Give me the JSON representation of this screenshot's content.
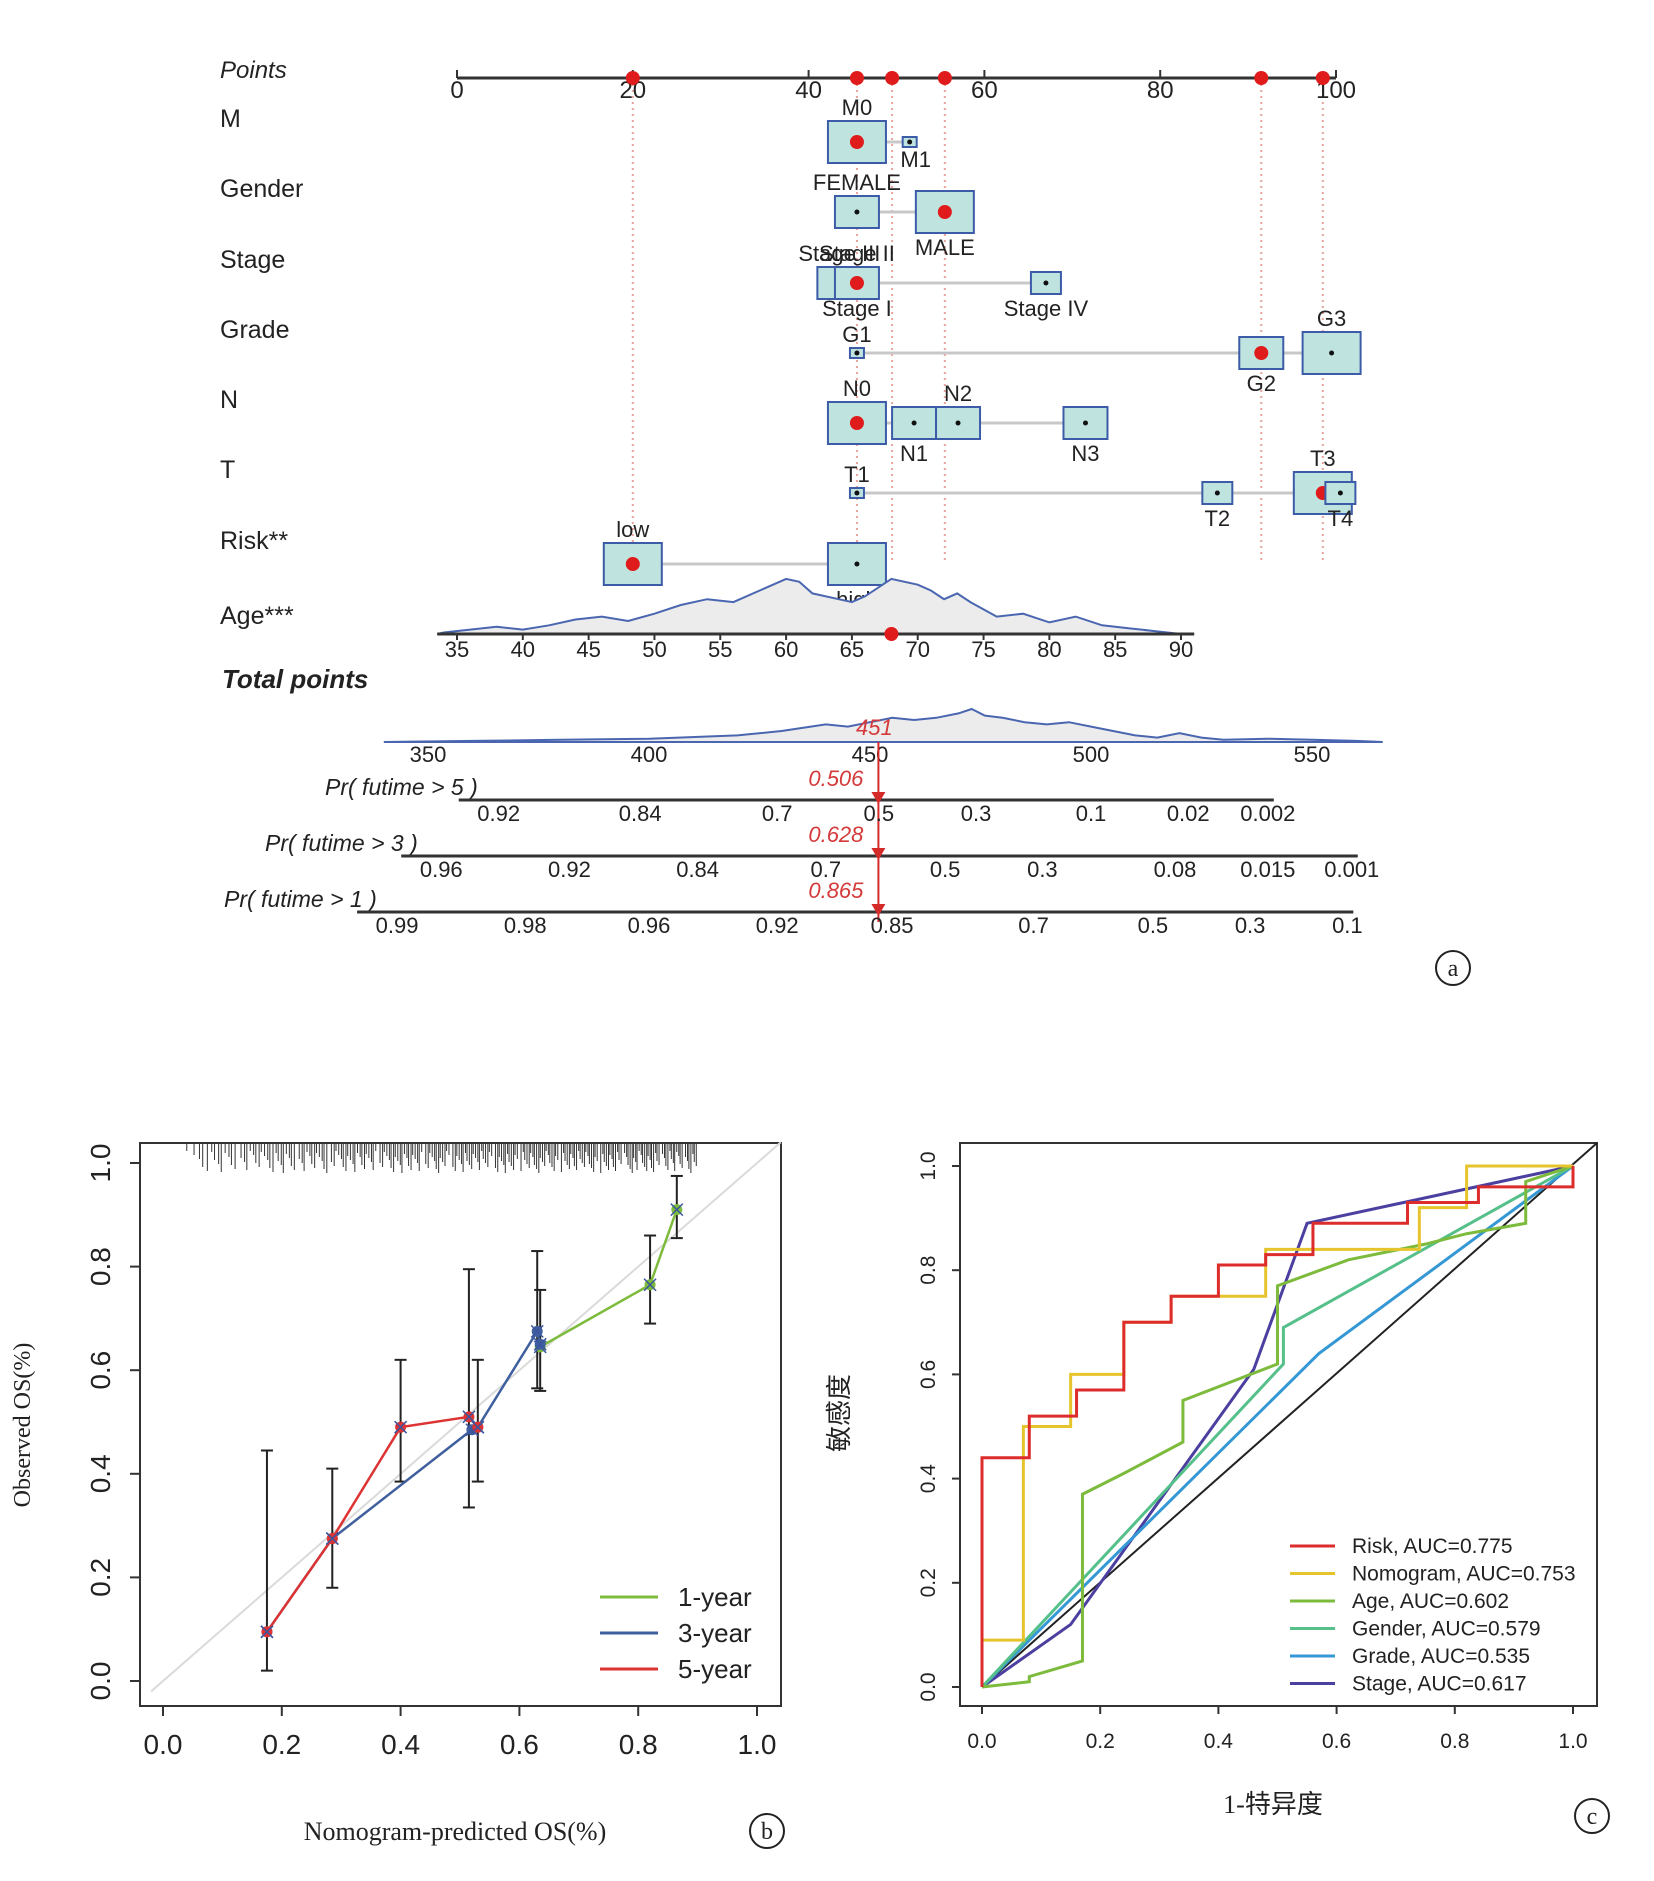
{
  "panel_labels": [
    "a",
    "b",
    "c"
  ],
  "chart_data": [
    {
      "type": "nomogram",
      "panel": "a",
      "points_axis": {
        "label": "Points",
        "ticks": [
          0,
          20,
          40,
          60,
          80,
          100
        ]
      },
      "selected_points": [
        20,
        45.5,
        49.5,
        55.5,
        91.5,
        98.5
      ],
      "variables": [
        {
          "name": "M",
          "levels": [
            {
              "label": "M0",
              "points": 45.5,
              "size": "large",
              "selected": true
            },
            {
              "label": "M1",
              "points": 51.5,
              "size": "tiny"
            }
          ]
        },
        {
          "name": "Gender",
          "levels": [
            {
              "label": "FEMALE",
              "points": 45.5,
              "size": "medium"
            },
            {
              "label": "MALE",
              "points": 55.5,
              "size": "large",
              "selected": true
            }
          ]
        },
        {
          "name": "Stage",
          "levels": [
            {
              "label": "Stage III",
              "points": 43.5,
              "size": "medium"
            },
            {
              "label": "Stage I",
              "points": 45.5,
              "size": "small"
            },
            {
              "label": "Stage II",
              "points": 45.5,
              "size": "medium",
              "selected": true
            },
            {
              "label": "Stage IV",
              "points": 67,
              "size": "small"
            }
          ]
        },
        {
          "name": "Grade",
          "levels": [
            {
              "label": "G1",
              "points": 45.5,
              "size": "tiny"
            },
            {
              "label": "G2",
              "points": 91.5,
              "size": "medium",
              "selected": true
            },
            {
              "label": "G3",
              "points": 99.5,
              "size": "large"
            }
          ]
        },
        {
          "name": "N",
          "levels": [
            {
              "label": "N0",
              "points": 45.5,
              "size": "large",
              "selected": true
            },
            {
              "label": "N1",
              "points": 52,
              "size": "medium"
            },
            {
              "label": "N2",
              "points": 57,
              "size": "medium"
            },
            {
              "label": "N3",
              "points": 71.5,
              "size": "medium"
            }
          ]
        },
        {
          "name": "T",
          "levels": [
            {
              "label": "T1",
              "points": 45.5,
              "size": "tiny"
            },
            {
              "label": "T2",
              "points": 86.5,
              "size": "small"
            },
            {
              "label": "T3",
              "points": 98.5,
              "size": "large",
              "selected": true
            },
            {
              "label": "T4",
              "points": 100.5,
              "size": "small"
            }
          ]
        },
        {
          "name": "Risk**",
          "levels": [
            {
              "label": "low",
              "points": 20,
              "size": "large",
              "selected": true
            },
            {
              "label": "high",
              "points": 45.5,
              "size": "large"
            }
          ]
        }
      ],
      "age": {
        "name": "Age***",
        "ticks": [
          35,
          40,
          45,
          50,
          55,
          60,
          65,
          70,
          75,
          80,
          85,
          90
        ],
        "selected_age": 68
      },
      "total_points": {
        "label": "Total points",
        "ticks": [
          350,
          400,
          450,
          500,
          550
        ],
        "value": 451,
        "value_label": "451"
      },
      "probability_axes": [
        {
          "label": "Pr( futime > 5 )",
          "value_label": "0.506",
          "ticks": [
            {
              "label": "0.92",
              "total": 366
            },
            {
              "label": "0.84",
              "total": 398
            },
            {
              "label": "0.7",
              "total": 429
            },
            {
              "label": "0.5",
              "total": 452
            },
            {
              "label": "0.3",
              "total": 474
            },
            {
              "label": "0.1",
              "total": 500
            },
            {
              "label": "0.02",
              "total": 522
            },
            {
              "label": "0.002",
              "total": 540
            }
          ]
        },
        {
          "label": "Pr( futime > 3 )",
          "value_label": "0.628",
          "ticks": [
            {
              "label": "0.96",
              "total": 353
            },
            {
              "label": "0.92",
              "total": 382
            },
            {
              "label": "0.84",
              "total": 411
            },
            {
              "label": "0.7",
              "total": 440
            },
            {
              "label": "0.5",
              "total": 467
            },
            {
              "label": "0.3",
              "total": 489
            },
            {
              "label": "0.08",
              "total": 519
            },
            {
              "label": "0.015",
              "total": 540
            },
            {
              "label": "0.001",
              "total": 559
            }
          ]
        },
        {
          "label": "Pr( futime > 1 )",
          "value_label": "0.865",
          "ticks": [
            {
              "label": "0.99",
              "total": 343
            },
            {
              "label": "0.98",
              "total": 372
            },
            {
              "label": "0.96",
              "total": 400
            },
            {
              "label": "0.92",
              "total": 429
            },
            {
              "label": "0.85",
              "total": 455
            },
            {
              "label": "0.7",
              "total": 487
            },
            {
              "label": "0.5",
              "total": 514
            },
            {
              "label": "0.3",
              "total": 536
            },
            {
              "label": "0.1",
              "total": 558
            }
          ]
        }
      ]
    },
    {
      "type": "line",
      "panel": "b",
      "xlabel": "Nomogram-predicted OS(%)",
      "ylabel": "Observed OS(%)",
      "xlim": [
        0,
        1
      ],
      "ylim": [
        0,
        1
      ],
      "xticks": [
        "0.0",
        "0.2",
        "0.4",
        "0.6",
        "0.8",
        "1.0"
      ],
      "yticks": [
        "0.0",
        "0.2",
        "0.4",
        "0.6",
        "0.8",
        "1.0"
      ],
      "legend_position": "bottom-right",
      "series": [
        {
          "name": "1-year",
          "color": "#7dbb3c",
          "points": [
            [
              0.635,
              0.645
            ],
            [
              0.82,
              0.765
            ],
            [
              0.865,
              0.91
            ]
          ],
          "errors": [
            [
              0.635,
              0.56,
              0.755
            ],
            [
              0.82,
              0.69,
              0.86
            ],
            [
              0.865,
              0.855,
              0.975
            ]
          ]
        },
        {
          "name": "3-year",
          "color": "#3f5f9e",
          "points": [
            [
              0.175,
              0.095
            ],
            [
              0.285,
              0.275
            ],
            [
              0.52,
              0.485
            ],
            [
              0.53,
              0.49
            ],
            [
              0.63,
              0.675
            ],
            [
              0.635,
              0.65
            ]
          ],
          "errors": [
            [
              0.53,
              0.385,
              0.62
            ],
            [
              0.63,
              0.565,
              0.83
            ]
          ]
        },
        {
          "name": "5-year",
          "color": "#dd3333",
          "points": [
            [
              0.175,
              0.095
            ],
            [
              0.285,
              0.275
            ],
            [
              0.4,
              0.49
            ],
            [
              0.515,
              0.51
            ],
            [
              0.53,
              0.49
            ]
          ],
          "errors": [
            [
              0.175,
              0.02,
              0.445
            ],
            [
              0.285,
              0.18,
              0.41
            ],
            [
              0.4,
              0.385,
              0.62
            ],
            [
              0.515,
              0.335,
              0.795
            ]
          ]
        }
      ]
    },
    {
      "type": "line",
      "panel": "c",
      "xlabel": "1-特异度",
      "ylabel": "敏感度",
      "xlim": [
        0,
        1
      ],
      "ylim": [
        0,
        1
      ],
      "xticks": [
        "0.0",
        "0.2",
        "0.4",
        "0.6",
        "0.8",
        "1.0"
      ],
      "yticks": [
        "0.0",
        "0.2",
        "0.4",
        "0.6",
        "0.8",
        "1.0"
      ],
      "legend_position": "bottom-right",
      "series": [
        {
          "name": "Risk, AUC=0.775",
          "color": "#dd2c2c",
          "points": [
            [
              0,
              0
            ],
            [
              0,
              0.44
            ],
            [
              0.08,
              0.44
            ],
            [
              0.08,
              0.52
            ],
            [
              0.16,
              0.52
            ],
            [
              0.16,
              0.57
            ],
            [
              0.24,
              0.57
            ],
            [
              0.24,
              0.7
            ],
            [
              0.32,
              0.7
            ],
            [
              0.32,
              0.75
            ],
            [
              0.4,
              0.75
            ],
            [
              0.4,
              0.81
            ],
            [
              0.48,
              0.81
            ],
            [
              0.48,
              0.83
            ],
            [
              0.56,
              0.83
            ],
            [
              0.56,
              0.89
            ],
            [
              0.72,
              0.89
            ],
            [
              0.72,
              0.93
            ],
            [
              0.84,
              0.93
            ],
            [
              0.84,
              0.96
            ],
            [
              1.0,
              0.96
            ],
            [
              1.0,
              1.0
            ]
          ]
        },
        {
          "name": "Nomogram, AUC=0.753",
          "color": "#e6c42e",
          "points": [
            [
              0,
              0
            ],
            [
              0,
              0.09
            ],
            [
              0.07,
              0.09
            ],
            [
              0.07,
              0.5
            ],
            [
              0.15,
              0.5
            ],
            [
              0.15,
              0.6
            ],
            [
              0.24,
              0.6
            ],
            [
              0.24,
              0.7
            ],
            [
              0.32,
              0.7
            ],
            [
              0.32,
              0.75
            ],
            [
              0.48,
              0.75
            ],
            [
              0.48,
              0.84
            ],
            [
              0.74,
              0.84
            ],
            [
              0.74,
              0.92
            ],
            [
              0.82,
              0.92
            ],
            [
              0.82,
              1.0
            ],
            [
              1.0,
              1.0
            ]
          ]
        },
        {
          "name": "Age, AUC=0.602",
          "color": "#7dbb3c",
          "points": [
            [
              0,
              0
            ],
            [
              0.08,
              0.01
            ],
            [
              0.08,
              0.02
            ],
            [
              0.17,
              0.05
            ],
            [
              0.17,
              0.37
            ],
            [
              0.24,
              0.41
            ],
            [
              0.34,
              0.47
            ],
            [
              0.34,
              0.55
            ],
            [
              0.5,
              0.62
            ],
            [
              0.5,
              0.77
            ],
            [
              0.62,
              0.82
            ],
            [
              0.75,
              0.85
            ],
            [
              0.82,
              0.87
            ],
            [
              0.92,
              0.89
            ],
            [
              0.92,
              0.97
            ],
            [
              1.0,
              1.0
            ]
          ]
        },
        {
          "name": "Gender, AUC=0.579",
          "color": "#56c08a",
          "points": [
            [
              0,
              0
            ],
            [
              0.51,
              0.62
            ],
            [
              0.51,
              0.69
            ],
            [
              1.0,
              1.0
            ]
          ]
        },
        {
          "name": "Grade, AUC=0.535",
          "color": "#3598d4",
          "points": [
            [
              0,
              0
            ],
            [
              0.57,
              0.64
            ],
            [
              1.0,
              1.0
            ]
          ]
        },
        {
          "name": "Stage, AUC=0.617",
          "color": "#4b3fa0",
          "points": [
            [
              0,
              0
            ],
            [
              0.15,
              0.12
            ],
            [
              0.46,
              0.61
            ],
            [
              0.55,
              0.89
            ],
            [
              1.0,
              1.0
            ]
          ]
        }
      ]
    }
  ]
}
